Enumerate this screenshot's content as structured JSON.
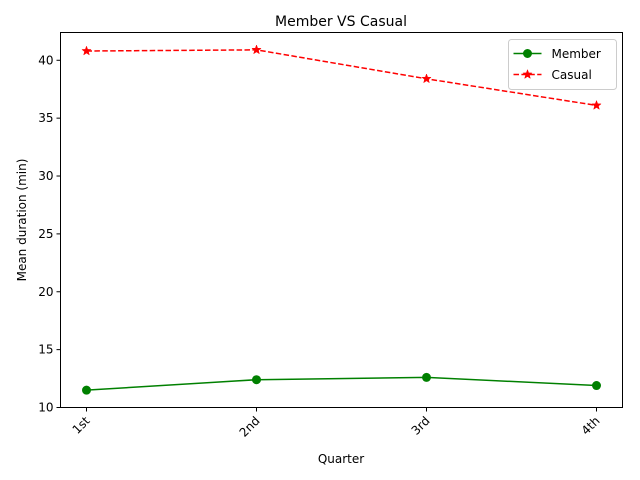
{
  "chart_data": {
    "type": "line",
    "title": "Member VS Casual",
    "xlabel": "Quarter",
    "ylabel": "Mean duration (min)",
    "categories": [
      "1st",
      "2nd",
      "3rd",
      "4th"
    ],
    "ylim": [
      10,
      42.4
    ],
    "yticks": [
      10,
      15,
      20,
      25,
      30,
      35,
      40
    ],
    "grid": false,
    "legend_position": "top-right",
    "series": [
      {
        "name": "Member",
        "values": [
          11.5,
          12.4,
          12.6,
          11.9
        ],
        "color": "#008000",
        "marker": "circle",
        "linestyle": "solid"
      },
      {
        "name": "Casual",
        "values": [
          40.8,
          40.9,
          38.4,
          36.1
        ],
        "color": "#ff0000",
        "marker": "star",
        "linestyle": "dashed"
      }
    ]
  }
}
